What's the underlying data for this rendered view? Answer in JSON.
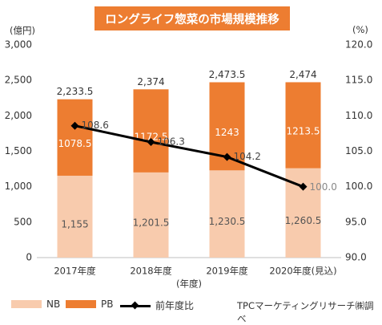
{
  "chart_data": {
    "type": "bar",
    "title": "ロングライフ惣菜の市場規模推移",
    "y_unit_left": "(億円)",
    "y_unit_right": "(%)",
    "xlabel": "(年度)",
    "categories": [
      "2017年度",
      "2018年度",
      "2019年度",
      "2020年度(見込)"
    ],
    "ylim": [
      0,
      3000
    ],
    "y2lim": [
      90,
      120
    ],
    "yticks": [
      "0",
      "500",
      "1,000",
      "1,500",
      "2,000",
      "2,500",
      "3,000"
    ],
    "y2ticks": [
      "90.0",
      "95.0",
      "100.0",
      "105.0",
      "110.0",
      "115.0",
      "120.0"
    ],
    "stacked": true,
    "series": [
      {
        "name": "NB",
        "kind": "bar",
        "color": "#f8cbad",
        "values": [
          1155,
          1201.5,
          1230.5,
          1260.5
        ],
        "labels": [
          "1,155",
          "1,201.5",
          "1,230.5",
          "1,260.5"
        ]
      },
      {
        "name": "PB",
        "kind": "bar",
        "color": "#ed7d31",
        "values": [
          1078.5,
          1172.5,
          1243,
          1213.5
        ],
        "labels": [
          "1078.5",
          "1172.5",
          "1243",
          "1213.5"
        ]
      },
      {
        "name": "前年度比",
        "kind": "line",
        "axis": "right",
        "color": "#000000",
        "values": [
          108.6,
          106.3,
          104.2,
          100.0
        ],
        "labels": [
          "108.6",
          "106.3",
          "104.2",
          "100.0"
        ]
      }
    ],
    "totals": [
      2233.5,
      2374,
      2473.5,
      2474
    ],
    "total_labels": [
      "2,233.5",
      "2,374",
      "2,473.5",
      "2,474"
    ],
    "grid": false,
    "legend_position": "bottom",
    "source": "TPCマーケティングリサーチ㈱調べ"
  }
}
